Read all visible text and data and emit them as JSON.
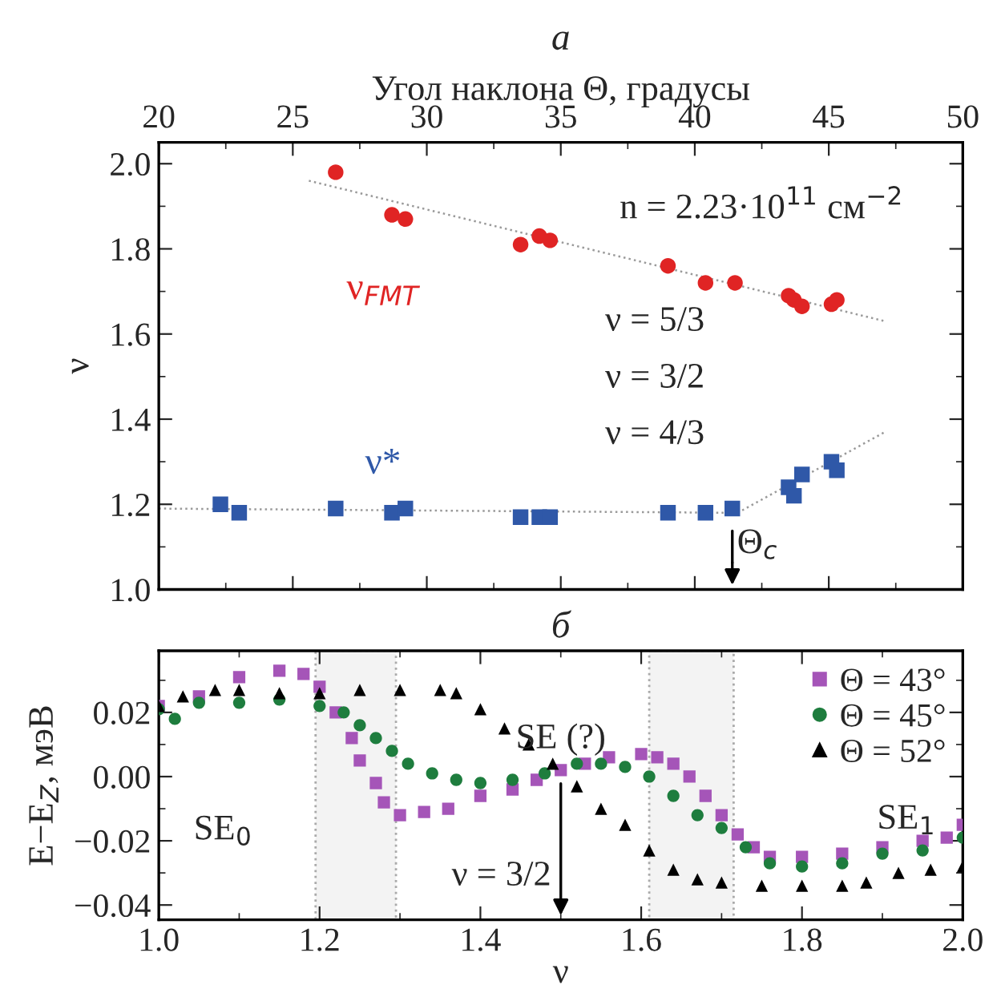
{
  "chart_data": [
    {
      "type": "scatter",
      "title": "а",
      "xlabel": "Угол наклона Θ, градусы",
      "ylabel": "ν",
      "xlim": [
        20,
        50
      ],
      "xticks": [
        20,
        25,
        30,
        35,
        40,
        45,
        50
      ],
      "ylim": [
        1.0,
        2.05
      ],
      "yticks": [
        {
          "value": 1.0,
          "label": "1.0"
        },
        {
          "value": 1.2,
          "label": "1.2"
        },
        {
          "value": 1.4,
          "label": "1.4"
        },
        {
          "value": 1.6,
          "label": "1.6"
        },
        {
          "value": 1.8,
          "label": "1.8"
        },
        {
          "value": 2.0,
          "label": "2.0"
        }
      ],
      "series": [
        {
          "type": "line",
          "color": "#9a9a9a",
          "line_style": "dotted",
          "x": [
            25.6,
            47.1
          ],
          "values": [
            1.96,
            1.63
          ]
        },
        {
          "type": "line",
          "color": "#9a9a9a",
          "line_style": "dotted",
          "x": [
            20,
            41.6,
            47.1
          ],
          "values": [
            1.19,
            1.18,
            1.37
          ]
        },
        {
          "type": "scatter",
          "name": "ν$_{FMT}$",
          "color": "#e02424",
          "marker": "circle",
          "x": [
            26.6,
            28.7,
            29.2,
            33.5,
            34.2,
            34.6,
            39.0,
            40.4,
            41.5,
            43.5,
            43.7,
            44.0,
            45.1,
            45.3
          ],
          "values": [
            1.98,
            1.88,
            1.87,
            1.81,
            1.83,
            1.82,
            1.76,
            1.72,
            1.72,
            1.69,
            1.68,
            1.665,
            1.67,
            1.68
          ]
        },
        {
          "type": "scatter",
          "name": "ν*",
          "color": "#2f58a8",
          "marker": "square",
          "x": [
            22.3,
            23.0,
            26.6,
            28.7,
            29.2,
            33.5,
            34.2,
            34.6,
            39.0,
            40.4,
            41.4,
            43.5,
            43.7,
            44.0,
            45.1,
            45.3
          ],
          "values": [
            1.2,
            1.18,
            1.19,
            1.18,
            1.19,
            1.17,
            1.17,
            1.17,
            1.18,
            1.18,
            1.19,
            1.24,
            1.22,
            1.27,
            1.3,
            1.28
          ]
        }
      ],
      "ref_lines": [
        {
          "axis": "x",
          "value": 41.4,
          "label": "Θ$_{c}$"
        }
      ],
      "annotations": [
        "n = 2.23·10$^{11}$ см$^{−2}$",
        "ν = 5/3",
        "ν = 3/2",
        "ν = 4/3"
      ]
    },
    {
      "type": "scatter",
      "title": "б",
      "xlabel": "ν",
      "ylabel": "E−E$_{Z}$, мэВ",
      "xlim": [
        1.0,
        2.0
      ],
      "xticks": [
        {
          "value": 1.0,
          "label": "1.0"
        },
        {
          "value": 1.2,
          "label": "1.2"
        },
        {
          "value": 1.4,
          "label": "1.4"
        },
        {
          "value": 1.6,
          "label": "1.6"
        },
        {
          "value": 1.8,
          "label": "1.8"
        },
        {
          "value": 2.0,
          "label": "2.0"
        }
      ],
      "ylim": [
        -0.0446,
        0.0392
      ],
      "yticks": [
        {
          "value": -0.04,
          "label": "−0.04"
        },
        {
          "value": -0.02,
          "label": "−0.02"
        },
        {
          "value": 0.0,
          "label": "0.00"
        },
        {
          "value": 0.02,
          "label": "0.02"
        }
      ],
      "legend": "top right",
      "series": [
        {
          "name": "Θ = 43°",
          "color": "#a555b8",
          "marker": "square",
          "x": [
            1.0,
            1.05,
            1.1,
            1.15,
            1.18,
            1.2,
            1.22,
            1.24,
            1.25,
            1.27,
            1.28,
            1.3,
            1.33,
            1.36,
            1.4,
            1.44,
            1.47,
            1.5,
            1.53,
            1.56,
            1.6,
            1.62,
            1.64,
            1.66,
            1.68,
            1.7,
            1.72,
            1.74,
            1.76,
            1.8,
            1.85,
            1.9,
            1.95,
            1.98,
            2.0
          ],
          "values": [
            0.022,
            0.025,
            0.031,
            0.033,
            0.032,
            0.028,
            0.02,
            0.012,
            0.005,
            -0.002,
            -0.008,
            -0.012,
            -0.011,
            -0.01,
            -0.006,
            -0.004,
            -0.001,
            0.002,
            0.004,
            0.006,
            0.007,
            0.006,
            0.004,
            0.0,
            -0.006,
            -0.012,
            -0.018,
            -0.022,
            -0.025,
            -0.025,
            -0.024,
            -0.022,
            -0.02,
            -0.019,
            -0.015
          ]
        },
        {
          "name": "Θ = 45°",
          "color": "#1e7d3e",
          "marker": "circle",
          "x": [
            1.0,
            1.02,
            1.05,
            1.1,
            1.15,
            1.2,
            1.23,
            1.25,
            1.27,
            1.29,
            1.31,
            1.34,
            1.37,
            1.4,
            1.44,
            1.48,
            1.52,
            1.55,
            1.58,
            1.61,
            1.64,
            1.67,
            1.7,
            1.73,
            1.76,
            1.8,
            1.85,
            1.9,
            1.95,
            2.0
          ],
          "values": [
            0.021,
            0.018,
            0.023,
            0.023,
            0.024,
            0.022,
            0.02,
            0.016,
            0.012,
            0.008,
            0.004,
            0.001,
            -0.001,
            -0.002,
            -0.001,
            0.001,
            0.004,
            0.004,
            0.003,
            0.0,
            -0.006,
            -0.012,
            -0.016,
            -0.022,
            -0.027,
            -0.028,
            -0.027,
            -0.024,
            -0.023,
            -0.019
          ]
        },
        {
          "name": "Θ = 52°",
          "color": "#000000",
          "marker": "triangle",
          "x": [
            1.0,
            1.03,
            1.07,
            1.1,
            1.15,
            1.2,
            1.25,
            1.3,
            1.35,
            1.37,
            1.4,
            1.43,
            1.46,
            1.49,
            1.52,
            1.55,
            1.58,
            1.61,
            1.64,
            1.67,
            1.7,
            1.75,
            1.8,
            1.85,
            1.88,
            1.92,
            1.96,
            2.0
          ],
          "values": [
            0.022,
            0.025,
            0.027,
            0.027,
            0.026,
            0.026,
            0.027,
            0.027,
            0.027,
            0.026,
            0.021,
            0.015,
            0.01,
            0.004,
            -0.003,
            -0.01,
            -0.015,
            -0.023,
            -0.029,
            -0.032,
            -0.033,
            -0.034,
            -0.034,
            -0.034,
            -0.033,
            -0.03,
            -0.029,
            -0.028
          ]
        }
      ],
      "bands": [
        {
          "axis": "x",
          "from": 1.195,
          "to": 1.295,
          "color": "#f3f3f3"
        },
        {
          "axis": "x",
          "from": 1.61,
          "to": 1.715,
          "color": "#f3f3f3"
        }
      ],
      "ref_lines": [
        {
          "axis": "x",
          "value": 1.5,
          "label": "ν = 3/2"
        }
      ],
      "annotations": [
        "SE$_{0}$",
        "SE (?)",
        "SE$_{1}$"
      ]
    }
  ]
}
